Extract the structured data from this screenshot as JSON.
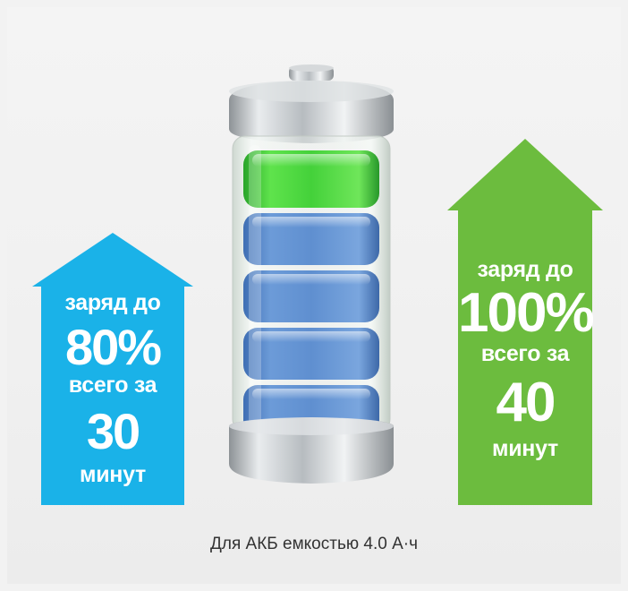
{
  "left_arrow": {
    "line1": "заряд до",
    "percent": "80%",
    "line2": "всего за",
    "minutes": "30",
    "line3": "минут",
    "color": "#1ab2e8"
  },
  "right_arrow": {
    "line1": "заряд до",
    "percent": "100%",
    "line2": "всего за",
    "minutes": "40",
    "line3": "минут",
    "color": "#6cbc3e"
  },
  "battery": {
    "icon": "battery-icon",
    "charged_segment_color": "#44d13a",
    "segment_color": "#5f8fd0"
  },
  "caption": "Для АКБ емкостью 4.0 А·ч"
}
